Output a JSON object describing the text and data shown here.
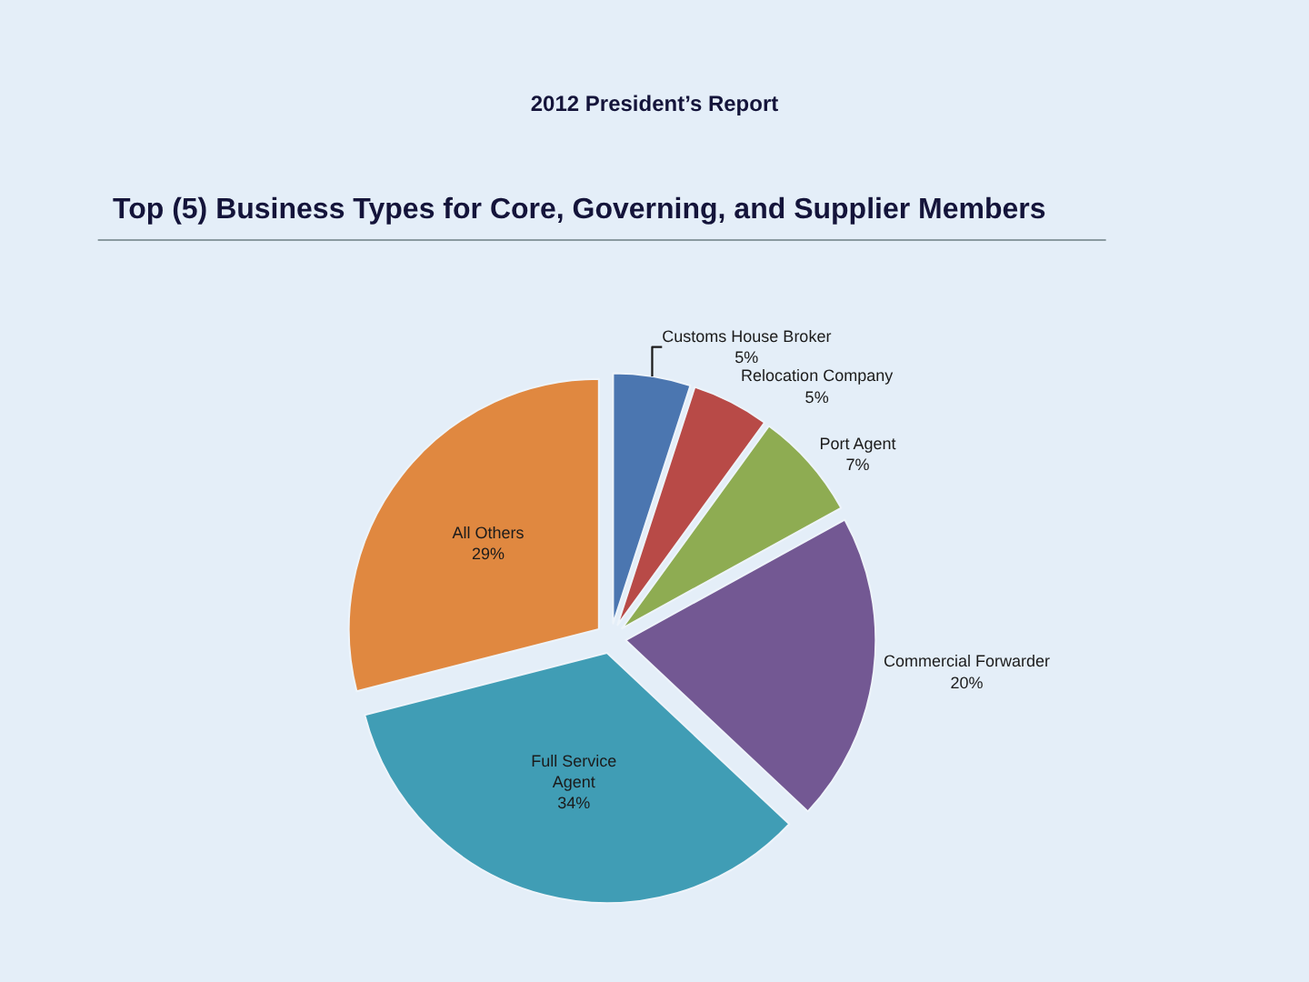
{
  "chart_data": {
    "type": "pie",
    "title": "2012 President’s Report",
    "subtitle": "Top (5) Business Types for Core, Governing, and Supplier Members",
    "categories": [
      "Customs House Broker",
      "Relocation Company",
      "Port Agent",
      "Commercial Forwarder",
      "Full Service Agent",
      "All Others"
    ],
    "values": [
      5,
      5,
      7,
      20,
      34,
      29
    ],
    "value_labels": [
      "5%",
      "5%",
      "7%",
      "20%",
      "34%",
      "29%"
    ],
    "colors": [
      "#4b76b0",
      "#b84a47",
      "#8eac52",
      "#735893",
      "#409db5",
      "#e08840"
    ]
  }
}
